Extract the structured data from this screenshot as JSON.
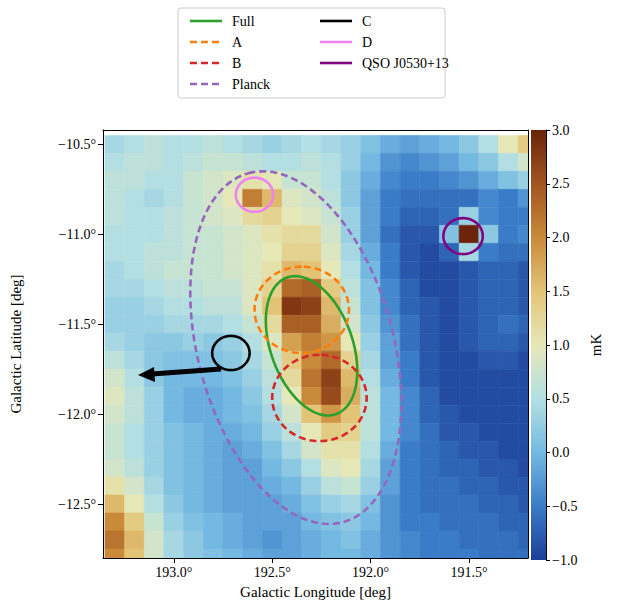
{
  "chart_data": {
    "type": "heatmap",
    "x_label": "Galactic Longitude [deg]",
    "y_label": "Galactic Latitude [deg]",
    "xlim": [
      193.36,
      191.2
    ],
    "ylim": [
      -12.8,
      -10.42
    ],
    "xticks": [
      {
        "value": 193.0,
        "label": "193.0°"
      },
      {
        "value": 192.5,
        "label": "192.5°"
      },
      {
        "value": 192.0,
        "label": "192.0°"
      },
      {
        "value": 191.5,
        "label": "191.5°"
      }
    ],
    "yticks": [
      {
        "value": -10.5,
        "label": "−10.5°"
      },
      {
        "value": -11.0,
        "label": "−11.0°"
      },
      {
        "value": -11.5,
        "label": "−11.5°"
      },
      {
        "value": -12.0,
        "label": "−12.0°"
      },
      {
        "value": -12.5,
        "label": "−12.5°"
      }
    ],
    "legend": "top",
    "cells": {
      "x": [
        193.3,
        193.2,
        193.1,
        193.0,
        192.9,
        192.8,
        192.7,
        192.6,
        192.5,
        192.4,
        192.3,
        192.2,
        192.1,
        192.0,
        191.9,
        191.8,
        191.7,
        191.6,
        191.5,
        191.4,
        191.3,
        191.2
      ],
      "y": [
        -10.5,
        -10.6,
        -10.7,
        -10.8,
        -10.9,
        -11.0,
        -11.1,
        -11.2,
        -11.3,
        -11.4,
        -11.5,
        -11.6,
        -11.7,
        -11.8,
        -11.9,
        -12.0,
        -12.1,
        -12.2,
        -12.3,
        -12.4,
        -12.5,
        -12.6,
        -12.7,
        -12.8
      ],
      "values": [
        [
          0.4,
          0.5,
          0.6,
          0.5,
          0.5,
          0.6,
          0.5,
          0.4,
          0.3,
          0.4,
          0.5,
          0.4,
          0.3,
          0.1,
          -0.1,
          -0.2,
          -0.1,
          0.0,
          0.2,
          0.5,
          1.0,
          1.4
        ],
        [
          0.5,
          0.6,
          0.6,
          0.5,
          0.6,
          0.7,
          0.7,
          0.6,
          0.5,
          0.5,
          0.6,
          0.5,
          0.3,
          0.0,
          -0.3,
          -0.4,
          -0.3,
          -0.2,
          0.0,
          0.2,
          0.5,
          0.8
        ],
        [
          0.6,
          0.6,
          0.5,
          0.5,
          0.7,
          0.8,
          0.9,
          1.1,
          1.0,
          0.7,
          0.7,
          0.5,
          0.2,
          -0.1,
          -0.4,
          -0.5,
          -0.5,
          -0.4,
          -0.3,
          -0.1,
          0.1,
          0.3
        ],
        [
          0.6,
          0.5,
          0.4,
          0.5,
          0.7,
          0.8,
          1.0,
          2.1,
          1.6,
          0.9,
          0.8,
          0.6,
          0.2,
          -0.2,
          -0.5,
          -0.6,
          -0.6,
          -0.6,
          -0.6,
          -0.4,
          -0.5,
          -0.3
        ],
        [
          0.6,
          0.5,
          0.5,
          0.6,
          0.7,
          0.8,
          0.9,
          1.2,
          1.3,
          1.0,
          0.9,
          0.7,
          0.3,
          -0.2,
          -0.5,
          -0.7,
          -0.7,
          -0.6,
          0.3,
          -0.4,
          -0.5,
          -0.5
        ],
        [
          0.5,
          0.5,
          0.5,
          0.6,
          0.7,
          0.7,
          0.8,
          0.9,
          1.1,
          1.2,
          1.2,
          0.8,
          0.3,
          -0.2,
          -0.6,
          -0.8,
          -0.8,
          0.1,
          3.0,
          0.2,
          -0.5,
          -0.4
        ],
        [
          0.5,
          0.5,
          0.6,
          0.6,
          0.7,
          0.7,
          0.8,
          0.9,
          1.0,
          1.3,
          1.3,
          0.9,
          0.4,
          -0.1,
          -0.5,
          -0.8,
          -0.9,
          -0.7,
          0.4,
          -0.5,
          -0.6,
          -0.6
        ],
        [
          0.4,
          0.5,
          0.6,
          0.7,
          0.7,
          0.7,
          0.8,
          0.9,
          1.1,
          1.6,
          1.5,
          1.0,
          0.5,
          0.0,
          -0.5,
          -0.8,
          -0.9,
          -0.9,
          -0.8,
          -0.7,
          -0.7,
          -0.8
        ],
        [
          0.4,
          0.4,
          0.5,
          0.6,
          0.6,
          0.7,
          0.7,
          0.9,
          1.3,
          2.3,
          2.4,
          1.4,
          0.6,
          0.1,
          -0.4,
          -0.7,
          -0.9,
          -0.9,
          -0.8,
          -0.7,
          -0.7,
          -0.8
        ],
        [
          0.3,
          0.3,
          0.4,
          0.5,
          0.5,
          0.6,
          0.6,
          0.9,
          1.5,
          2.8,
          2.7,
          1.6,
          0.7,
          0.1,
          -0.4,
          -0.7,
          -0.8,
          -0.9,
          -0.8,
          -0.7,
          -0.7,
          -0.8
        ],
        [
          0.3,
          0.3,
          0.3,
          0.4,
          0.4,
          0.4,
          0.5,
          0.7,
          1.2,
          2.4,
          2.4,
          1.7,
          0.8,
          0.2,
          -0.3,
          -0.6,
          -0.8,
          -0.9,
          -0.8,
          -0.7,
          -0.6,
          -0.7
        ],
        [
          0.4,
          0.3,
          0.2,
          0.2,
          0.3,
          0.2,
          0.3,
          0.5,
          0.9,
          1.8,
          2.1,
          1.9,
          1.0,
          0.3,
          -0.2,
          -0.6,
          -0.8,
          -0.9,
          -0.8,
          -0.7,
          -0.7,
          -0.8
        ],
        [
          0.6,
          0.4,
          0.2,
          0.1,
          0.1,
          0.1,
          0.2,
          0.4,
          0.7,
          1.4,
          2.0,
          2.3,
          1.3,
          0.4,
          -0.2,
          -0.5,
          -0.8,
          -0.9,
          -0.9,
          -0.8,
          -0.8,
          -0.9
        ],
        [
          0.8,
          0.5,
          0.2,
          0.0,
          0.0,
          0.0,
          0.1,
          0.3,
          0.6,
          1.2,
          2.2,
          2.7,
          1.6,
          0.5,
          -0.1,
          -0.5,
          -0.8,
          -0.9,
          -0.9,
          -0.9,
          -0.9,
          -0.9
        ],
        [
          0.9,
          0.6,
          0.3,
          0.0,
          -0.1,
          -0.1,
          0.0,
          0.2,
          0.5,
          1.0,
          2.0,
          2.6,
          1.7,
          0.6,
          0.0,
          -0.4,
          -0.7,
          -0.9,
          -0.9,
          -0.9,
          -0.9,
          -0.9
        ],
        [
          0.8,
          0.6,
          0.3,
          0.0,
          -0.1,
          -0.1,
          0.0,
          0.1,
          0.4,
          0.8,
          1.5,
          1.9,
          1.5,
          0.6,
          0.0,
          -0.4,
          -0.7,
          -0.8,
          -0.9,
          -0.9,
          -0.9,
          -0.9
        ],
        [
          0.7,
          0.5,
          0.3,
          0.1,
          0.0,
          -0.1,
          -0.1,
          0.0,
          0.3,
          0.6,
          1.0,
          1.4,
          1.3,
          0.6,
          0.0,
          -0.4,
          -0.6,
          -0.8,
          -0.8,
          -0.9,
          -0.9,
          -0.9
        ],
        [
          0.7,
          0.5,
          0.3,
          0.1,
          0.0,
          -0.1,
          -0.2,
          -0.1,
          0.1,
          0.4,
          0.8,
          1.1,
          1.1,
          0.5,
          -0.1,
          -0.5,
          -0.6,
          -0.7,
          -0.8,
          -0.8,
          -0.9,
          -0.9
        ],
        [
          0.8,
          0.6,
          0.3,
          0.1,
          0.0,
          -0.1,
          -0.2,
          -0.2,
          0.0,
          0.2,
          0.5,
          0.9,
          1.0,
          0.4,
          -0.2,
          -0.5,
          -0.6,
          -0.7,
          -0.7,
          -0.8,
          -0.8,
          -0.9
        ],
        [
          1.1,
          0.8,
          0.4,
          0.1,
          0.0,
          -0.1,
          -0.2,
          -0.2,
          -0.1,
          0.0,
          0.3,
          0.6,
          0.7,
          0.3,
          -0.2,
          -0.5,
          -0.6,
          -0.6,
          -0.7,
          -0.7,
          -0.8,
          -0.8
        ],
        [
          1.6,
          1.0,
          0.5,
          0.2,
          0.0,
          -0.1,
          -0.2,
          -0.2,
          -0.2,
          -0.1,
          0.1,
          0.3,
          0.4,
          0.1,
          -0.3,
          -0.5,
          -0.6,
          -0.6,
          -0.6,
          -0.7,
          -0.7,
          -0.8
        ],
        [
          2.0,
          1.4,
          0.7,
          0.3,
          0.1,
          0.0,
          -0.1,
          -0.2,
          -0.2,
          -0.2,
          0.0,
          0.1,
          0.2,
          0.0,
          -0.3,
          -0.5,
          -0.5,
          -0.6,
          -0.6,
          -0.6,
          -0.7,
          -0.7
        ],
        [
          2.2,
          1.6,
          0.8,
          0.4,
          0.2,
          0.0,
          -0.1,
          -0.2,
          -0.3,
          -0.2,
          -0.1,
          0.0,
          0.1,
          -0.1,
          -0.3,
          -0.4,
          -0.5,
          -0.5,
          -0.6,
          -0.6,
          -0.6,
          -0.7
        ],
        [
          2.0,
          1.5,
          0.8,
          0.4,
          0.2,
          0.1,
          0.0,
          -0.1,
          -0.2,
          -0.2,
          -0.1,
          0.0,
          0.0,
          -0.1,
          -0.3,
          -0.4,
          -0.5,
          -0.5,
          -0.5,
          -0.6,
          -0.6,
          -0.6
        ]
      ]
    },
    "colorbar": {
      "label": "mK",
      "range": [
        -1.0,
        3.0
      ],
      "ticks": [
        {
          "value": -1.0,
          "label": "−1.0"
        },
        {
          "value": -0.5,
          "label": "−0.5"
        },
        {
          "value": 0.0,
          "label": "0.0"
        },
        {
          "value": 0.5,
          "label": "0.5"
        },
        {
          "value": 1.0,
          "label": "1.0"
        },
        {
          "value": 1.5,
          "label": "1.5"
        },
        {
          "value": 2.0,
          "label": "2.0"
        },
        {
          "value": 2.5,
          "label": "2.5"
        },
        {
          "value": 3.0,
          "label": "3.0"
        }
      ]
    },
    "regions": [
      {
        "name": "Full",
        "color": "#2ca02c",
        "line_style": "solid",
        "center": [
          192.3,
          -11.62
        ],
        "semi_axes": [
          0.4,
          0.21
        ],
        "angle": 17
      },
      {
        "name": "A",
        "color": "#ff7f0e",
        "line_style": "dashed",
        "center": [
          192.35,
          -11.42
        ],
        "radius": 0.24
      },
      {
        "name": "B",
        "color": "#d62728",
        "line_style": "dashed",
        "center": [
          192.26,
          -11.91
        ],
        "radius": 0.24
      },
      {
        "name": "Planck",
        "color": "#9467bd",
        "line_style": "dashed",
        "center": [
          192.38,
          -11.63
        ],
        "semi_axes": [
          1.0,
          0.5
        ],
        "angle": 13
      },
      {
        "name": "C",
        "color": "#000000",
        "line_style": "solid",
        "center": [
          192.71,
          -11.66
        ],
        "radius": 0.095
      },
      {
        "name": "D",
        "color": "#ee82ee",
        "line_style": "solid",
        "center": [
          192.59,
          -10.78
        ],
        "radius": 0.095
      },
      {
        "name": "QSO J0530+13",
        "color": "#800080",
        "line_style": "solid",
        "center": [
          191.53,
          -11.01
        ],
        "radius": 0.1
      }
    ]
  }
}
